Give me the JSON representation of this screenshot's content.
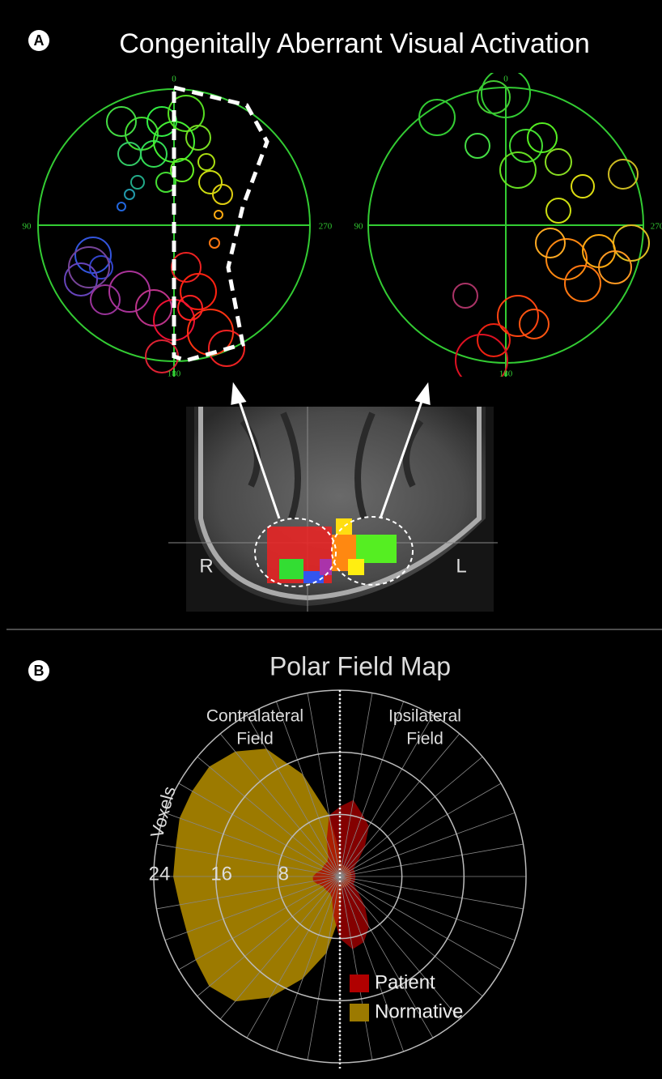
{
  "panel_a": {
    "badge": "A",
    "title": "Congenitally Aberrant Visual Activation",
    "left_plot": {
      "top": "0",
      "left": "90",
      "right": "270",
      "bottom": "180"
    },
    "right_plot": {
      "top": "0",
      "left": "90",
      "right": "270",
      "bottom": "180"
    },
    "brain": {
      "left_side": "R",
      "right_side": "L"
    }
  },
  "panel_b": {
    "badge": "B"
  },
  "chart_data": {
    "type": "polar",
    "title": "Polar Field Map",
    "annotations": [
      [
        "Contralateral",
        "Field"
      ],
      [
        "Ipsilateral",
        "Field"
      ]
    ],
    "r_label": "Voxels",
    "theta": [
      0,
      10,
      20,
      30,
      40,
      50,
      60,
      70,
      80,
      90,
      100,
      110,
      120,
      130,
      140,
      150,
      160,
      170,
      180,
      190,
      200,
      210,
      220,
      230,
      240,
      250,
      260,
      270,
      280,
      290,
      300,
      310,
      320,
      330,
      340,
      350
    ],
    "rlim": [
      0,
      24
    ],
    "rticks": [
      8,
      16,
      24
    ],
    "grid": true,
    "series": [
      {
        "name": "Normative",
        "color": "#9c7a00",
        "values": [
          3,
          1.5,
          1.5,
          1.5,
          1.5,
          1.5,
          1.5,
          1.5,
          1.5,
          1.5,
          1.5,
          1.5,
          1.5,
          1.5,
          1.5,
          1.5,
          1.5,
          1.5,
          5,
          10,
          14,
          18,
          21,
          22,
          21.5,
          21,
          21,
          21.5,
          21.5,
          22,
          22,
          22,
          21,
          19,
          14,
          8
        ]
      },
      {
        "name": "Patient",
        "color": "#b00000",
        "values": [
          9,
          10,
          8.5,
          7.5,
          5,
          3,
          2,
          2,
          2,
          2,
          2,
          2,
          2,
          3,
          5,
          7.5,
          9,
          9.5,
          8,
          5,
          3,
          2.5,
          2.5,
          2.5,
          2.5,
          3,
          3.5,
          3.5,
          3,
          2.5,
          2.5,
          2.5,
          2.5,
          3,
          5,
          8
        ]
      }
    ]
  }
}
